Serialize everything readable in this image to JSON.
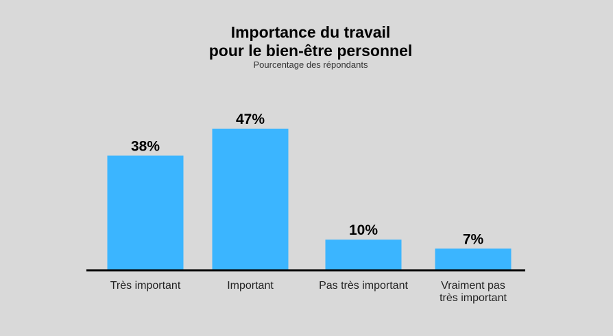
{
  "title_line1": "Importance du travail",
  "title_line2": "pour le bien-être personnel",
  "subtitle": "Pourcentage des répondants",
  "colors": {
    "bar": "#3bb5ff",
    "background": "#d9d9d9",
    "axis": "#000000"
  },
  "chart_data": {
    "type": "bar",
    "categories": [
      [
        "Très important"
      ],
      [
        "Important"
      ],
      [
        "Pas très important"
      ],
      [
        "Vraiment pas",
        "très important"
      ]
    ],
    "values": [
      38,
      47,
      10,
      7
    ],
    "value_labels": [
      "38%",
      "47%",
      "10%",
      "7%"
    ],
    "ylim": [
      0,
      50
    ],
    "grid": false
  }
}
